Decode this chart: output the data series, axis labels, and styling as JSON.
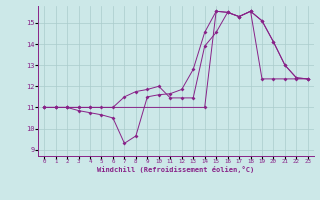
{
  "bg_color": "#cce8e8",
  "line_color": "#882288",
  "grid_color": "#aacccc",
  "xlim_min": -0.5,
  "xlim_max": 23.5,
  "ylim_min": 8.7,
  "ylim_max": 15.8,
  "xticks": [
    0,
    1,
    2,
    3,
    4,
    5,
    6,
    7,
    8,
    9,
    10,
    11,
    12,
    13,
    14,
    15,
    16,
    17,
    18,
    19,
    20,
    21,
    22,
    23
  ],
  "yticks": [
    9,
    10,
    11,
    12,
    13,
    14,
    15
  ],
  "xlabel": "Windchill (Refroidissement éolien,°C)",
  "line1_x": [
    0,
    1,
    2,
    3,
    4,
    5,
    6,
    7,
    8,
    9,
    10,
    11,
    12,
    13,
    14,
    15,
    16,
    17,
    18,
    19,
    20,
    21,
    22,
    23
  ],
  "line1_y": [
    11,
    11,
    11,
    10.85,
    10.75,
    10.65,
    10.5,
    9.3,
    9.65,
    11.5,
    11.6,
    11.65,
    11.85,
    12.8,
    14.55,
    15.55,
    15.5,
    15.3,
    15.55,
    15.1,
    14.1,
    13.0,
    12.4,
    12.35
  ],
  "line2_x": [
    0,
    1,
    2,
    3,
    4,
    14,
    15,
    16,
    17,
    18,
    19,
    20,
    21,
    22,
    23
  ],
  "line2_y": [
    11,
    11,
    11,
    11,
    11,
    11,
    15.55,
    15.5,
    15.3,
    15.55,
    15.1,
    14.1,
    13.0,
    12.4,
    12.35
  ],
  "line3_x": [
    0,
    1,
    2,
    3,
    4,
    5,
    6,
    7,
    8,
    9,
    10,
    11,
    12,
    13,
    14,
    15,
    16,
    17,
    18,
    19,
    20,
    21,
    22,
    23
  ],
  "line3_y": [
    11,
    11,
    11,
    11,
    11,
    11,
    11,
    11.5,
    11.75,
    11.85,
    12.0,
    11.45,
    11.45,
    11.45,
    13.9,
    14.55,
    15.5,
    15.3,
    15.55,
    12.35,
    12.35,
    12.35,
    12.35,
    12.35
  ]
}
